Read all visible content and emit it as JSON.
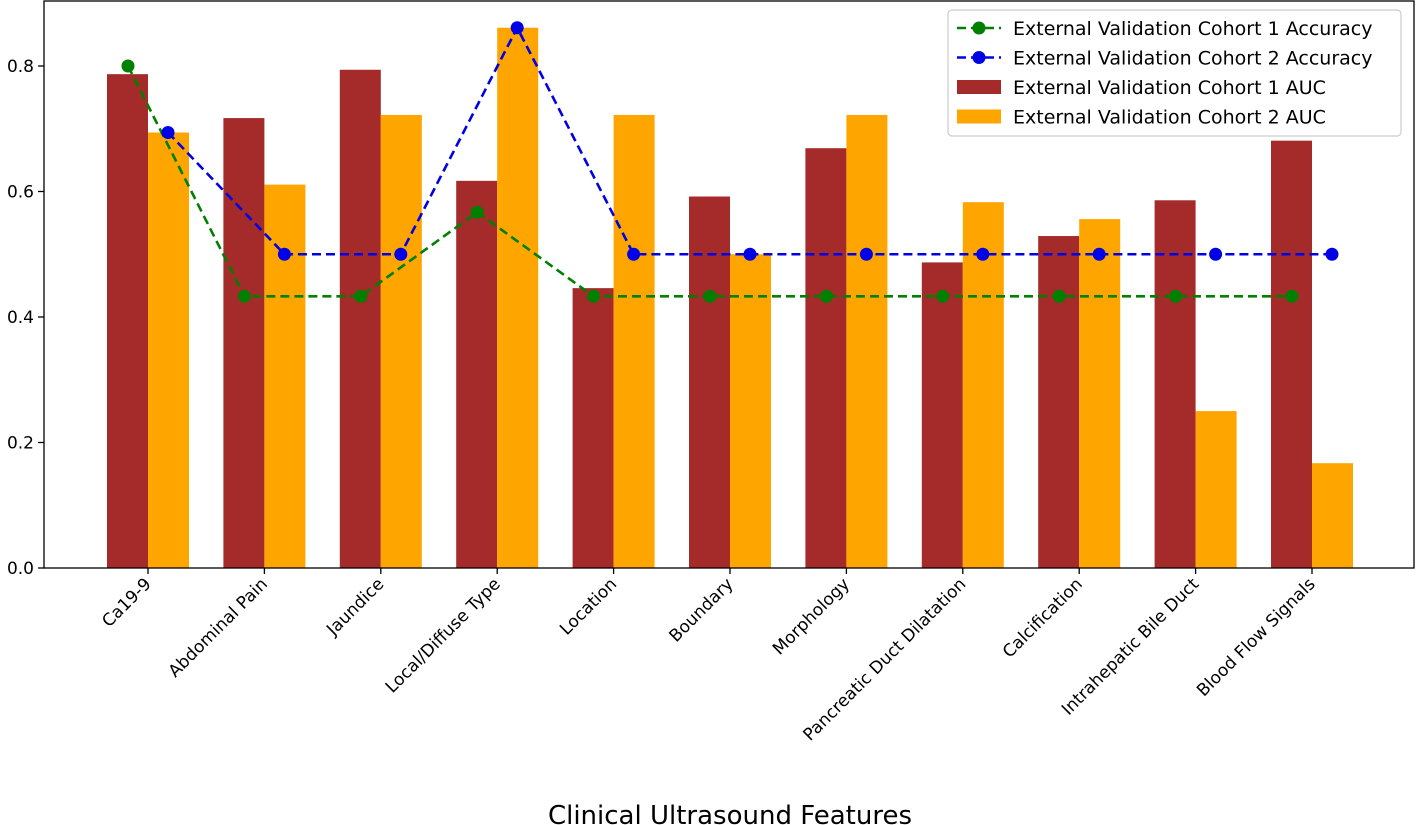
{
  "chart_data": {
    "type": "bar",
    "title": "",
    "xlabel": "Clinical Ultrasound Features",
    "ylabel": "",
    "ylim": [
      0,
      0.88
    ],
    "yticks": [
      0.0,
      0.2,
      0.4,
      0.6,
      0.8
    ],
    "ytick_labels": [
      "0.0",
      "0.2",
      "0.4",
      "0.6",
      "0.8"
    ],
    "legend_position": "top-right",
    "categories": [
      "Ca19-9",
      "Abdominal Pain",
      "Jaundice",
      "Local/Diffuse Type",
      "Location",
      "Boundary",
      "Morphology",
      "Pancreatic Duct Dilatation",
      "Calcification",
      "Intrahepatic Bile Duct",
      "Blood Flow Signals"
    ],
    "bar_series": [
      {
        "name": "External Validation Cohort 1 AUC",
        "color": "#a52a2a",
        "values": [
          0.787,
          0.717,
          0.794,
          0.617,
          0.446,
          0.592,
          0.669,
          0.487,
          0.529,
          0.586,
          0.681
        ]
      },
      {
        "name": "External Validation Cohort 2 AUC",
        "color": "#ffa500",
        "values": [
          0.694,
          0.611,
          0.722,
          0.861,
          0.722,
          0.5,
          0.722,
          0.583,
          0.556,
          0.25,
          0.167
        ]
      }
    ],
    "line_series": [
      {
        "name": "External Validation Cohort 1 Accuracy",
        "color": "#008000",
        "values": [
          0.8,
          0.433,
          0.433,
          0.567,
          0.433,
          0.433,
          0.433,
          0.433,
          0.433,
          0.433,
          0.433
        ]
      },
      {
        "name": "External Validation Cohort 2 Accuracy",
        "color": "#0000e6",
        "values": [
          0.694,
          0.5,
          0.5,
          0.861,
          0.5,
          0.5,
          0.5,
          0.5,
          0.5,
          0.5,
          0.5
        ]
      }
    ],
    "legend_order": [
      "External Validation Cohort 1 Accuracy",
      "External Validation Cohort 2 Accuracy",
      "External Validation Cohort 1 AUC",
      "External Validation Cohort 2 AUC"
    ]
  }
}
